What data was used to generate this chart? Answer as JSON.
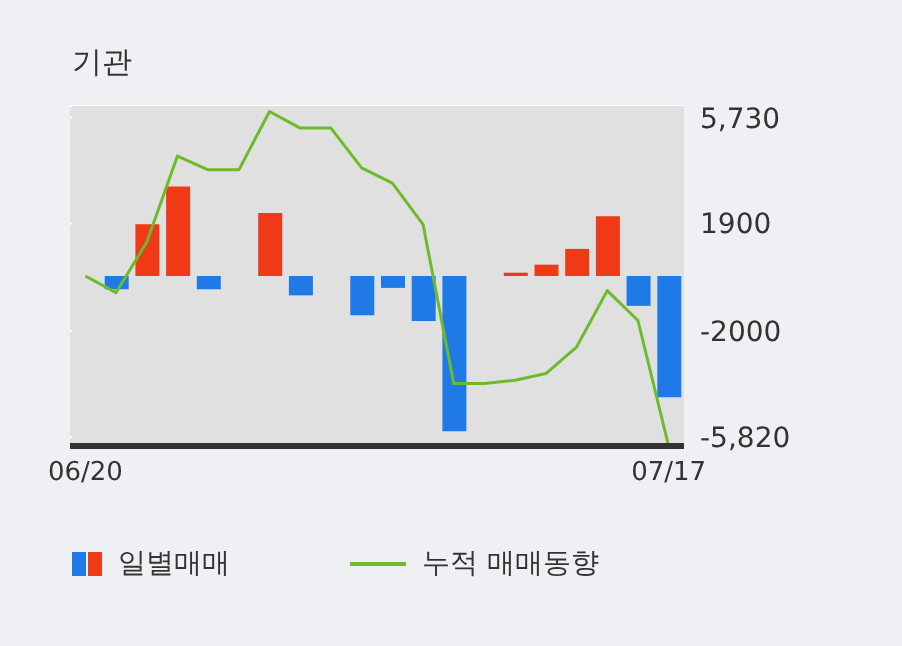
{
  "chart_data": {
    "type": "bar",
    "title": "기관",
    "categories": [
      "06/20",
      null,
      null,
      null,
      null,
      null,
      null,
      null,
      null,
      null,
      null,
      null,
      null,
      null,
      null,
      null,
      null,
      null,
      null,
      "07/17"
    ],
    "series": [
      {
        "name": "일별매매",
        "colors": [
          "#1f7ae8",
          "#1f7ae8",
          "#f03a17",
          "#f03a17",
          "#1f7ae8",
          "#1f7ae8",
          "#f03a17",
          "#1f7ae8",
          "#1f7ae8",
          "#1f7ae8",
          "#1f7ae8",
          "#1f7ae8",
          "#1f7ae8",
          "#f03a17",
          "#f03a17",
          "#f03a17",
          "#f03a17",
          "#f03a17",
          "#1f7ae8",
          "#1f7ae8"
        ],
        "values": [
          0,
          -480,
          1870,
          3240,
          -480,
          0,
          2280,
          -700,
          0,
          -1420,
          -430,
          -1630,
          -5620,
          0,
          120,
          410,
          980,
          2160,
          -1080,
          -4390
        ]
      },
      {
        "type": "line",
        "name": "누적 매매동향",
        "color": "#6dbb2a",
        "values": [
          0,
          -600,
          1220,
          4340,
          3840,
          3840,
          5950,
          5350,
          5350,
          3910,
          3360,
          1870,
          -3890,
          -3890,
          -3770,
          -3530,
          -2570,
          -530,
          -1610,
          -6150
        ]
      }
    ],
    "ylim": [
      -6150,
      6150
    ],
    "yticks": [
      {
        "value": 5730,
        "label": "5,730"
      },
      1900,
      -2000,
      {
        "value": -5820,
        "label": "-5,820"
      }
    ],
    "grid": "y",
    "legend": "bottom"
  }
}
